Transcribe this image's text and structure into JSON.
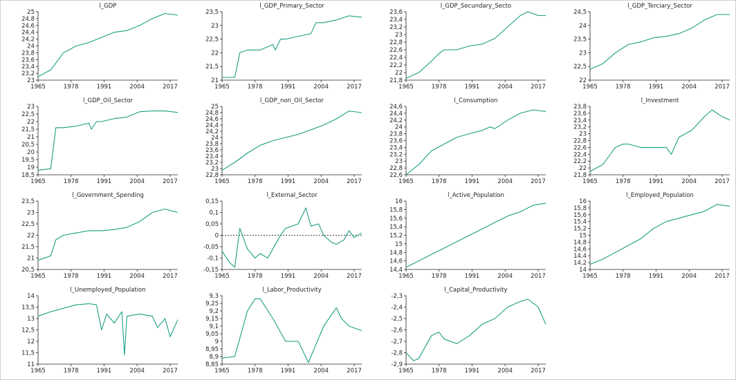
{
  "colors": {
    "line": "#1a9e82",
    "axis": "#222222",
    "zero": "#000000"
  },
  "chart_data": [
    {
      "type": "line",
      "title": "l_GDP",
      "x": [
        1965,
        1970,
        1975,
        1980,
        1985,
        1990,
        1995,
        2000,
        2005,
        2010,
        2015,
        2020
      ],
      "y": [
        23.1,
        23.3,
        23.8,
        24.0,
        24.1,
        24.25,
        24.4,
        24.45,
        24.6,
        24.8,
        24.95,
        24.9
      ],
      "ylim": [
        23,
        25
      ],
      "yticks": [
        "23",
        "23,2",
        "23,4",
        "23,6",
        "23,8",
        "24",
        "24,2",
        "24,4",
        "24,6",
        "24,8",
        "25"
      ],
      "xticks": [
        "1965",
        "1978",
        "1991",
        "2004",
        "2017"
      ]
    },
    {
      "type": "line",
      "title": "l_GDP_Primary_Sector",
      "x": [
        1965,
        1970,
        1972,
        1975,
        1980,
        1985,
        1986,
        1988,
        1990,
        1995,
        2000,
        2002,
        2005,
        2010,
        2015,
        2020
      ],
      "y": [
        21.1,
        21.1,
        22.0,
        22.1,
        22.1,
        22.3,
        22.1,
        22.5,
        22.5,
        22.6,
        22.7,
        23.1,
        23.1,
        23.2,
        23.35,
        23.3
      ],
      "ylim": [
        21,
        23.5
      ],
      "yticks": [
        "21",
        "21,5",
        "22",
        "22,5",
        "23",
        "23,5"
      ],
      "xticks": [
        "1965",
        "1978",
        "1991",
        "2004",
        "2017"
      ]
    },
    {
      "type": "line",
      "title": "l_GDP_Secundary_Secto",
      "x": [
        1965,
        1970,
        1975,
        1978,
        1980,
        1985,
        1990,
        1995,
        2000,
        2005,
        2010,
        2013,
        2017,
        2020
      ],
      "y": [
        21.85,
        22.0,
        22.3,
        22.5,
        22.6,
        22.6,
        22.7,
        22.75,
        22.9,
        23.2,
        23.5,
        23.6,
        23.5,
        23.5
      ],
      "ylim": [
        21.8,
        23.6
      ],
      "yticks": [
        "21,8",
        "22",
        "22,2",
        "22,4",
        "22,6",
        "22,8",
        "23",
        "23,2",
        "23,4",
        "23,6"
      ],
      "xticks": [
        "1965",
        "1978",
        "1991",
        "2004",
        "2017"
      ]
    },
    {
      "type": "line",
      "title": "l_GDP_Terciary_Sector",
      "x": [
        1965,
        1970,
        1975,
        1980,
        1985,
        1990,
        1995,
        2000,
        2005,
        2010,
        2015,
        2020
      ],
      "y": [
        22.4,
        22.6,
        23.0,
        23.3,
        23.4,
        23.55,
        23.6,
        23.7,
        23.9,
        24.2,
        24.4,
        24.4
      ],
      "ylim": [
        22,
        24.5
      ],
      "yticks": [
        "22",
        "22,5",
        "23",
        "23,5",
        "24",
        "24,5"
      ],
      "xticks": [
        "1965",
        "1978",
        "1991",
        "2004",
        "2017"
      ]
    },
    {
      "type": "line",
      "title": "l_GDP_Oil_Sector",
      "x": [
        1965,
        1970,
        1972,
        1975,
        1980,
        1985,
        1986,
        1988,
        1990,
        1995,
        2000,
        2005,
        2010,
        2015,
        2020
      ],
      "y": [
        18.8,
        18.9,
        21.6,
        21.6,
        21.7,
        21.9,
        21.5,
        22.0,
        22.0,
        22.2,
        22.3,
        22.65,
        22.7,
        22.7,
        22.6
      ],
      "ylim": [
        18.5,
        23
      ],
      "yticks": [
        "18,5",
        "19",
        "19,5",
        "20",
        "20,5",
        "21",
        "21,5",
        "22",
        "22,5",
        "23"
      ],
      "xticks": [
        "1965",
        "1978",
        "1991",
        "2004",
        "2017"
      ]
    },
    {
      "type": "line",
      "title": "l_GDP_non_Oil_Sector",
      "x": [
        1965,
        1970,
        1975,
        1980,
        1985,
        1990,
        1995,
        2000,
        2005,
        2010,
        2015,
        2020
      ],
      "y": [
        22.95,
        23.2,
        23.5,
        23.75,
        23.9,
        24.0,
        24.1,
        24.25,
        24.4,
        24.6,
        24.85,
        24.8
      ],
      "ylim": [
        22.8,
        25
      ],
      "yticks": [
        "22,8",
        "23",
        "23,2",
        "23,4",
        "23,6",
        "23,8",
        "24",
        "24,2",
        "24,4",
        "24,6",
        "24,8",
        "25"
      ],
      "xticks": [
        "1965",
        "1978",
        "1991",
        "2004",
        "2017"
      ]
    },
    {
      "type": "line",
      "title": "l_Consumption",
      "x": [
        1965,
        1970,
        1975,
        1980,
        1985,
        1990,
        1995,
        1998,
        2000,
        2005,
        2010,
        2015,
        2020
      ],
      "y": [
        22.6,
        22.9,
        23.3,
        23.5,
        23.7,
        23.8,
        23.9,
        24.0,
        23.95,
        24.2,
        24.4,
        24.5,
        24.45
      ],
      "ylim": [
        22.6,
        24.6
      ],
      "yticks": [
        "22,6",
        "22,8",
        "23",
        "23,2",
        "23,4",
        "23,6",
        "23,8",
        "24",
        "24,2",
        "24,4",
        "24,6"
      ],
      "xticks": [
        "1965",
        "1978",
        "1991",
        "2004",
        "2017"
      ]
    },
    {
      "type": "line",
      "title": "l_Investment",
      "x": [
        1965,
        1970,
        1975,
        1978,
        1980,
        1985,
        1990,
        1995,
        1997,
        2000,
        2005,
        2010,
        2013,
        2017,
        2020
      ],
      "y": [
        21.9,
        22.1,
        22.6,
        22.7,
        22.7,
        22.6,
        22.6,
        22.6,
        22.4,
        22.9,
        23.1,
        23.5,
        23.7,
        23.5,
        23.4
      ],
      "ylim": [
        21.8,
        23.8
      ],
      "yticks": [
        "21,8",
        "22",
        "22,2",
        "22,4",
        "22,6",
        "22,8",
        "23",
        "23,2",
        "23,4",
        "23,6",
        "23,8"
      ],
      "xticks": [
        "1965",
        "1978",
        "1991",
        "2004",
        "2017"
      ]
    },
    {
      "type": "line",
      "title": "l_Government_Spending",
      "x": [
        1965,
        1970,
        1972,
        1975,
        1980,
        1985,
        1990,
        1995,
        2000,
        2005,
        2010,
        2015,
        2020
      ],
      "y": [
        20.9,
        21.1,
        21.8,
        22.0,
        22.1,
        22.2,
        22.2,
        22.25,
        22.35,
        22.6,
        23.0,
        23.15,
        23.0
      ],
      "ylim": [
        20.5,
        23.5
      ],
      "yticks": [
        "20,5",
        "21",
        "21,5",
        "22",
        "22,5",
        "23",
        "23,5"
      ],
      "xticks": [
        "1965",
        "1978",
        "1991",
        "2004",
        "2017"
      ]
    },
    {
      "type": "line",
      "title": "l_External_Sector",
      "x": [
        1965,
        1968,
        1970,
        1972,
        1975,
        1978,
        1980,
        1983,
        1985,
        1988,
        1990,
        1995,
        1998,
        2000,
        2003,
        2005,
        2008,
        2010,
        2013,
        2015,
        2017,
        2020
      ],
      "y": [
        -0.07,
        -0.12,
        -0.14,
        0.03,
        -0.06,
        -0.1,
        -0.08,
        -0.1,
        -0.06,
        0.0,
        0.03,
        0.05,
        0.12,
        0.04,
        0.05,
        0.0,
        -0.03,
        -0.04,
        -0.02,
        0.02,
        -0.01,
        0.01
      ],
      "zero_line": 0,
      "ylim": [
        -0.15,
        0.15
      ],
      "yticks": [
        "-0,15",
        "-0,1",
        "-0,05",
        "0",
        "0,05",
        "0,1",
        "0,15"
      ],
      "xticks": [
        "1965",
        "1978",
        "1991",
        "2004",
        "2017"
      ]
    },
    {
      "type": "line",
      "title": "l_Active_Population",
      "x": [
        1965,
        1970,
        1975,
        1980,
        1985,
        1990,
        1995,
        2000,
        2005,
        2010,
        2015,
        2020
      ],
      "y": [
        14.45,
        14.6,
        14.75,
        14.9,
        15.05,
        15.2,
        15.35,
        15.5,
        15.65,
        15.75,
        15.9,
        15.95
      ],
      "ylim": [
        14.4,
        16
      ],
      "yticks": [
        "14,4",
        "14,6",
        "14,8",
        "15",
        "15,2",
        "15,4",
        "15,6",
        "15,8",
        "16"
      ],
      "xticks": [
        "1965",
        "1978",
        "1991",
        "2004",
        "2017"
      ]
    },
    {
      "type": "line",
      "title": "l_Employed_Population",
      "x": [
        1965,
        1970,
        1975,
        1980,
        1985,
        1990,
        1995,
        2000,
        2005,
        2010,
        2015,
        2020
      ],
      "y": [
        14.15,
        14.3,
        14.5,
        14.7,
        14.9,
        15.2,
        15.4,
        15.5,
        15.6,
        15.7,
        15.9,
        15.85
      ],
      "ylim": [
        14,
        16
      ],
      "yticks": [
        "14",
        "14,2",
        "14,4",
        "14,6",
        "14,8",
        "15",
        "15,2",
        "15,4",
        "15,6",
        "15,8",
        "16"
      ],
      "xticks": [
        "1965",
        "1978",
        "1991",
        "2004",
        "2017"
      ]
    },
    {
      "type": "line",
      "title": "l_Unemployed_Population",
      "x": [
        1965,
        1970,
        1975,
        1980,
        1985,
        1988,
        1990,
        1992,
        1995,
        1998,
        1999,
        2000,
        2005,
        2010,
        2012,
        2015,
        2017,
        2020
      ],
      "y": [
        13.1,
        13.3,
        13.45,
        13.6,
        13.65,
        13.6,
        12.5,
        13.2,
        12.8,
        13.3,
        11.4,
        13.1,
        13.2,
        13.1,
        12.6,
        13.0,
        12.2,
        12.95
      ],
      "ylim": [
        11,
        14
      ],
      "yticks": [
        "11",
        "11,5",
        "12",
        "12,5",
        "13",
        "13,5",
        "14"
      ],
      "xticks": [
        "1965",
        "1978",
        "1991",
        "2004",
        "2017"
      ]
    },
    {
      "type": "line",
      "title": "l_Labor_Productivity",
      "x": [
        1965,
        1970,
        1975,
        1978,
        1980,
        1985,
        1990,
        1995,
        1999,
        2000,
        2005,
        2010,
        2012,
        2015,
        2020
      ],
      "y": [
        8.89,
        8.9,
        9.2,
        9.28,
        9.28,
        9.15,
        9.0,
        9.0,
        8.86,
        8.9,
        9.1,
        9.22,
        9.15,
        9.1,
        9.07
      ],
      "ylim": [
        8.85,
        9.3
      ],
      "yticks": [
        "8,85",
        "8,9",
        "8,95",
        "9",
        "9,05",
        "9,1",
        "9,15",
        "9,2",
        "9,25",
        "9,3"
      ],
      "xticks": [
        "1965",
        "1978",
        "1991",
        "2004",
        "2017"
      ]
    },
    {
      "type": "line",
      "title": "l_Capital_Productivity",
      "x": [
        1965,
        1968,
        1970,
        1975,
        1978,
        1980,
        1985,
        1990,
        1995,
        2000,
        2005,
        2010,
        2013,
        2017,
        2020
      ],
      "y": [
        -2.8,
        -2.87,
        -2.85,
        -2.65,
        -2.62,
        -2.68,
        -2.72,
        -2.65,
        -2.55,
        -2.5,
        -2.4,
        -2.35,
        -2.33,
        -2.4,
        -2.55
      ],
      "ylim": [
        -2.9,
        -2.3
      ],
      "yticks": [
        "-2,9",
        "-2,8",
        "-2,7",
        "-2,6",
        "-2,5",
        "-2,4",
        "-2,3"
      ],
      "xticks": [
        "1965",
        "1978",
        "1991",
        "2004",
        "2017"
      ]
    }
  ]
}
